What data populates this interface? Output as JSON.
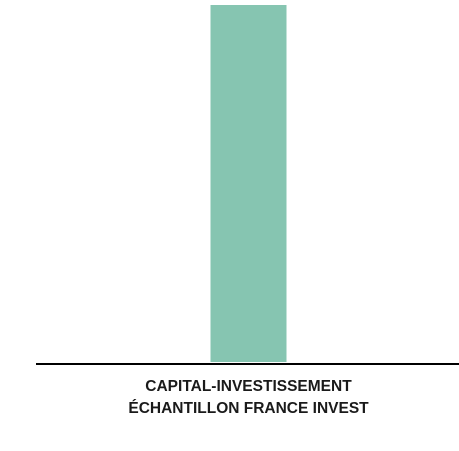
{
  "chart_data": {
    "type": "bar",
    "categories": [
      [
        "CAPITAL-INVESTISSEMENT",
        "ÉCHANTILLON FRANCE INVEST"
      ]
    ],
    "series": [
      {
        "values": [
          100
        ],
        "color": "#86c5b1"
      }
    ],
    "ylim": [
      0,
      100
    ],
    "grid": false,
    "legend": "none",
    "baseline_color": "#000000"
  }
}
